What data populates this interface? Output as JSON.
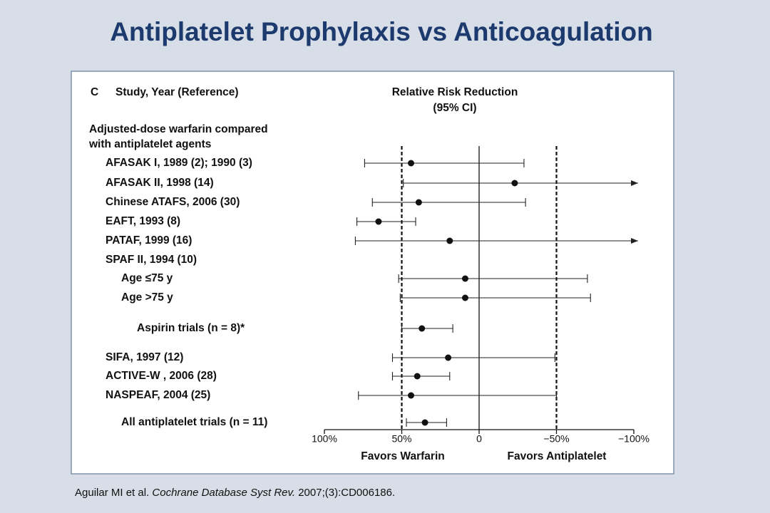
{
  "chart_data": {
    "type": "forest",
    "title": "Antiplatelet Prophylaxis vs Anticoagulation",
    "panel_label": "C",
    "column_header": "Study, Year (Reference)",
    "axis_title": [
      "Relative Risk Reduction",
      "(95% CI)"
    ],
    "group_header": [
      "Adjusted-dose warfarin compared",
      "with antiplatelet agents"
    ],
    "categories": [
      "AFASAK I, 1989 (2); 1990 (3)",
      "AFASAK II, 1998 (14)",
      "Chinese ATAFS, 2006 (30)",
      "EAFT, 1993 (8)",
      "PATAF, 1999 (16)",
      "SPAF II, 1994 (10)",
      "Age ≤75 y",
      "Age >75 y",
      "Aspirin trials (n = 8)*",
      "SIFA, 1997 (12)",
      "ACTIVE-W , 2006 (28)",
      "NASPEAF, 2004 (25)",
      "All antiplatelet trials (n = 11)"
    ],
    "indent": [
      1,
      1,
      1,
      1,
      1,
      1,
      2,
      2,
      3,
      1,
      1,
      1,
      2
    ],
    "values": [
      44,
      -23,
      39,
      65,
      19,
      null,
      9,
      9,
      37,
      20,
      40,
      44,
      35
    ],
    "ci_left": [
      74,
      49,
      69,
      79,
      80,
      null,
      52,
      51,
      50,
      56,
      56,
      78,
      47
    ],
    "ci_right": [
      -29,
      null,
      -30,
      41,
      null,
      null,
      -70,
      -72,
      17,
      -49,
      19,
      -50,
      21
    ],
    "xlim": [
      100,
      -100
    ],
    "xticks": [
      {
        "value": 100,
        "label": "100%"
      },
      {
        "value": 50,
        "label": "50%"
      },
      0,
      {
        "value": -50,
        "label": "−50%"
      },
      {
        "value": -100,
        "label": "−100%"
      }
    ],
    "dashed_lines": [
      50,
      -50
    ],
    "x_labels": [
      "Favors Warfarin",
      "Favors Antiplatelet"
    ],
    "citation": [
      "Aguilar MI et al. ",
      "Cochrane Database Syst Rev.",
      " 2007;(3):CD006186."
    ]
  }
}
